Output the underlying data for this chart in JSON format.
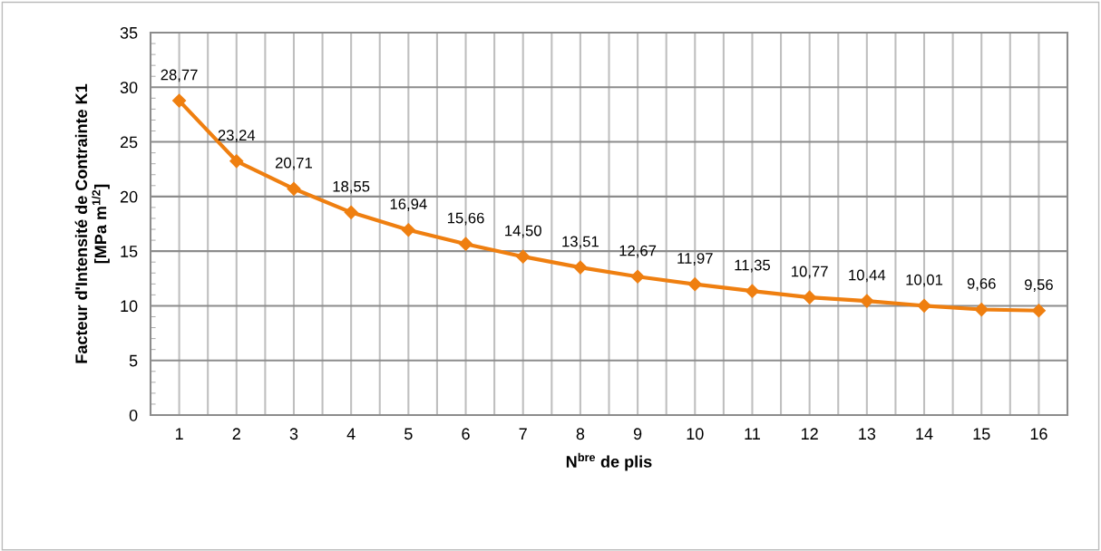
{
  "chart_data": {
    "type": "line",
    "xlabel": "N$^{bre}$ de plis",
    "ylabel": "Facteur d'Intensité de Contrainte K1\n[MPa m$^{1/2}$]",
    "categories": [
      "1",
      "2",
      "3",
      "4",
      "5",
      "6",
      "7",
      "8",
      "9",
      "10",
      "11",
      "12",
      "13",
      "14",
      "15",
      "16"
    ],
    "series": [
      {
        "color": "#ef7f10",
        "values": [
          28.77,
          23.24,
          20.71,
          18.55,
          16.94,
          15.66,
          14.5,
          13.51,
          12.67,
          11.97,
          11.35,
          10.77,
          10.44,
          10.01,
          9.66,
          9.56
        ],
        "value_labels": [
          "28,77",
          "23,24",
          "20,71",
          "18,55",
          "16,94",
          "15,66",
          "14,50",
          "13,51",
          "12,67",
          "11,97",
          "11,35",
          "10,77",
          "10,44",
          "10,01",
          "9,66",
          "9,56"
        ]
      }
    ],
    "ylim": [
      0,
      35
    ],
    "yticks": [
      0,
      5,
      10,
      15,
      20,
      25,
      30,
      35
    ],
    "grid": true,
    "marker": "diamond",
    "line_style": "solid"
  }
}
